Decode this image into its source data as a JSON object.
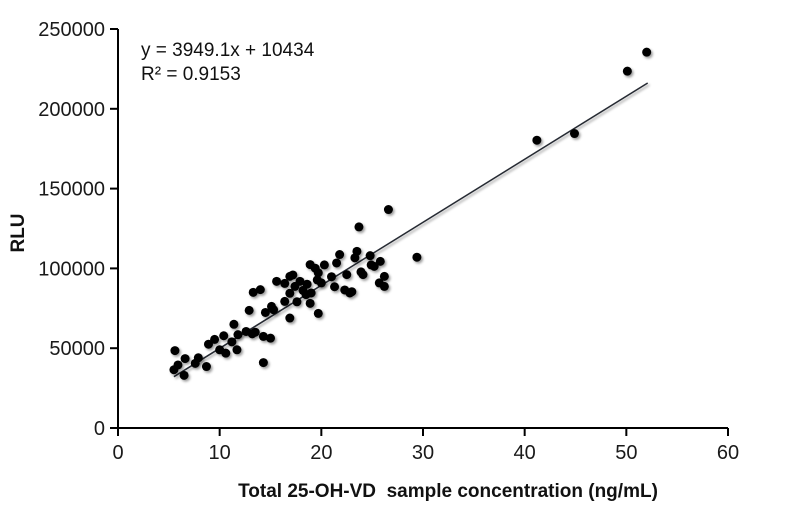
{
  "chart_data": {
    "type": "scatter",
    "title": "",
    "xlabel": "Total 25-OH-VD  sample concentration (ng/mL)",
    "ylabel": "RLU",
    "xlim": [
      0,
      60
    ],
    "ylim": [
      0,
      250000
    ],
    "x_ticks": [
      0,
      10,
      20,
      30,
      40,
      50,
      60
    ],
    "y_ticks": [
      0,
      50000,
      100000,
      150000,
      200000,
      250000
    ],
    "grid": false,
    "legend": "none",
    "marker_color": "#000000",
    "trendline_color": "#252a33",
    "annotation": {
      "equation": "y = 3949.1x + 10434",
      "r_squared": "R² = 0.9153"
    },
    "trendline": {
      "slope": 3949.1,
      "intercept": 10434,
      "x_start": 5.5,
      "x_end": 52.1,
      "r_squared": 0.9153
    },
    "points": [
      [
        5.6,
        48500
      ],
      [
        5.5,
        36500
      ],
      [
        5.9,
        39500
      ],
      [
        6.5,
        33000
      ],
      [
        6.6,
        43500
      ],
      [
        7.6,
        40500
      ],
      [
        7.9,
        44000
      ],
      [
        8.7,
        38500
      ],
      [
        8.9,
        52500
      ],
      [
        9.5,
        55500
      ],
      [
        10.0,
        49000
      ],
      [
        10.4,
        57800
      ],
      [
        10.6,
        46900
      ],
      [
        11.2,
        54000
      ],
      [
        11.4,
        65000
      ],
      [
        11.7,
        49000
      ],
      [
        11.8,
        58500
      ],
      [
        12.6,
        60500
      ],
      [
        12.9,
        73700
      ],
      [
        13.2,
        59000
      ],
      [
        13.3,
        85000
      ],
      [
        13.5,
        60000
      ],
      [
        14.0,
        86700
      ],
      [
        14.3,
        57400
      ],
      [
        14.3,
        41000
      ],
      [
        14.5,
        72400
      ],
      [
        15.0,
        56300
      ],
      [
        15.1,
        76200
      ],
      [
        15.3,
        74100
      ],
      [
        15.6,
        91900
      ],
      [
        16.4,
        79300
      ],
      [
        16.4,
        90600
      ],
      [
        16.9,
        95000
      ],
      [
        16.9,
        68900
      ],
      [
        16.9,
        84400
      ],
      [
        17.2,
        95900
      ],
      [
        17.4,
        88700
      ],
      [
        17.6,
        79100
      ],
      [
        17.9,
        91900
      ],
      [
        18.2,
        86200
      ],
      [
        18.5,
        83600
      ],
      [
        18.6,
        90100
      ],
      [
        18.9,
        102400
      ],
      [
        18.9,
        78100
      ],
      [
        19.0,
        84600
      ],
      [
        19.4,
        100100
      ],
      [
        19.6,
        92800
      ],
      [
        19.7,
        71800
      ],
      [
        19.7,
        97200
      ],
      [
        20.0,
        90900
      ],
      [
        20.3,
        102200
      ],
      [
        21.0,
        94800
      ],
      [
        21.3,
        88500
      ],
      [
        21.5,
        103400
      ],
      [
        21.8,
        108700
      ],
      [
        22.3,
        86500
      ],
      [
        22.5,
        96100
      ],
      [
        22.8,
        84600
      ],
      [
        23.0,
        85400
      ],
      [
        23.3,
        106600
      ],
      [
        23.5,
        110700
      ],
      [
        23.7,
        126000
      ],
      [
        23.9,
        97800
      ],
      [
        24.1,
        96100
      ],
      [
        24.8,
        108000
      ],
      [
        24.9,
        102200
      ],
      [
        25.2,
        101300
      ],
      [
        25.8,
        104400
      ],
      [
        25.7,
        90900
      ],
      [
        26.2,
        95000
      ],
      [
        26.2,
        88700
      ],
      [
        26.6,
        136900
      ],
      [
        29.4,
        107000
      ],
      [
        41.2,
        180300
      ],
      [
        44.9,
        184500
      ],
      [
        50.1,
        223600
      ],
      [
        52.0,
        235500
      ]
    ]
  }
}
